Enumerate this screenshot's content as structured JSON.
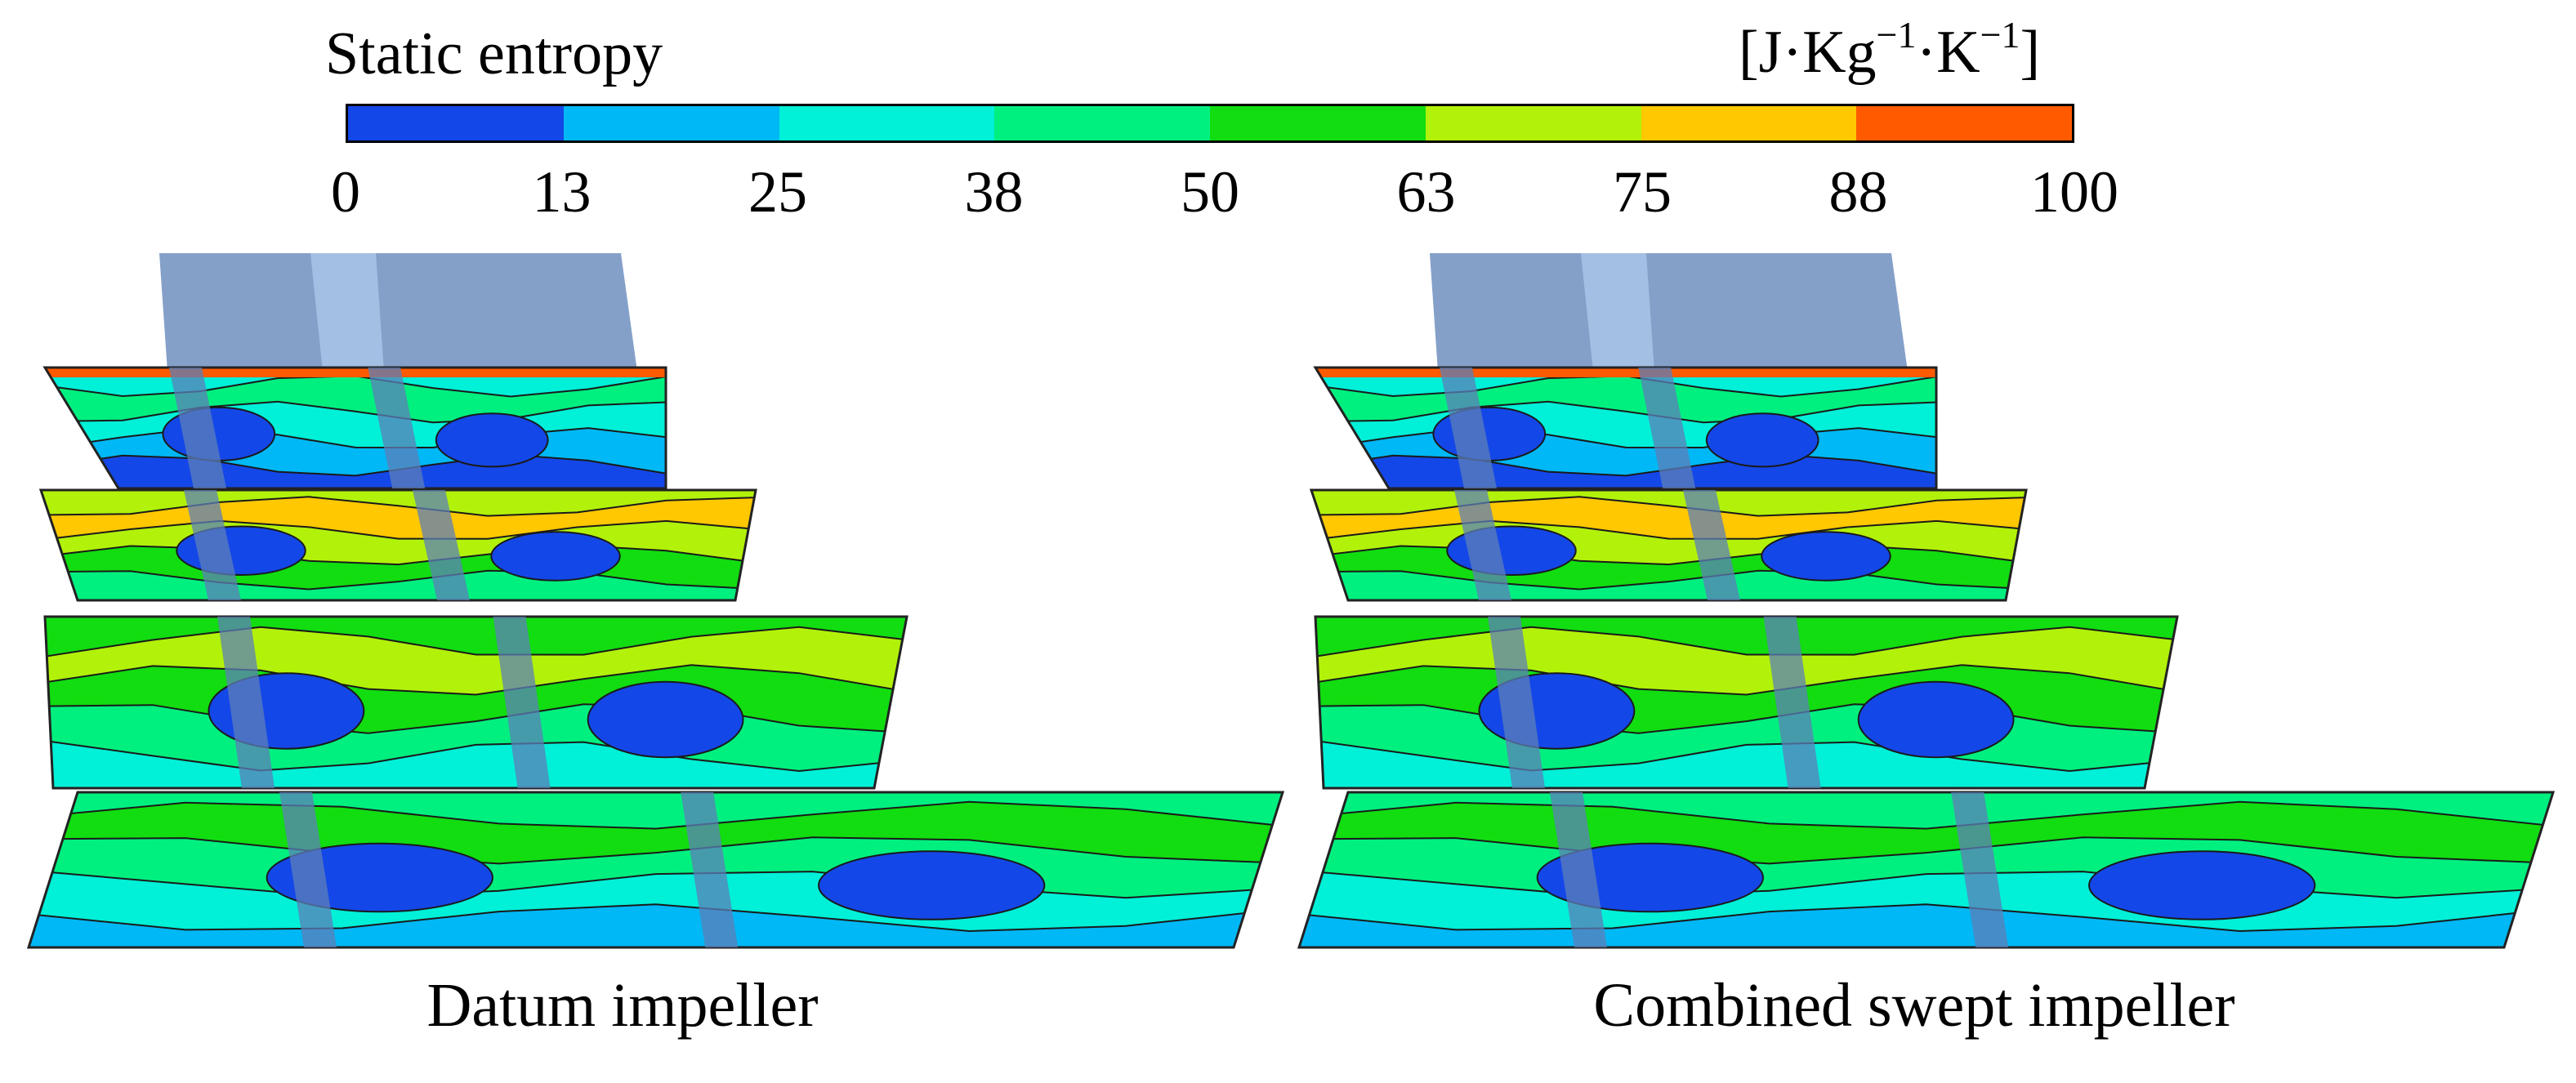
{
  "legend": {
    "title": "Static entropy",
    "unit": {
      "base": "[J·Kg",
      "exp1": "−1",
      "mid": "·K",
      "exp2": "−1",
      "end": "]"
    },
    "ticks": [
      "0",
      "13",
      "25",
      "38",
      "50",
      "63",
      "75",
      "88",
      "100"
    ],
    "colors": [
      "#1447e8",
      "#00b8f5",
      "#00f0d8",
      "#00f080",
      "#11dd11",
      "#b2f20a",
      "#ffc800",
      "#ff5a00"
    ]
  },
  "panels": [
    {
      "caption": "Datum impeller"
    },
    {
      "caption": "Combined swept impeller"
    }
  ]
}
